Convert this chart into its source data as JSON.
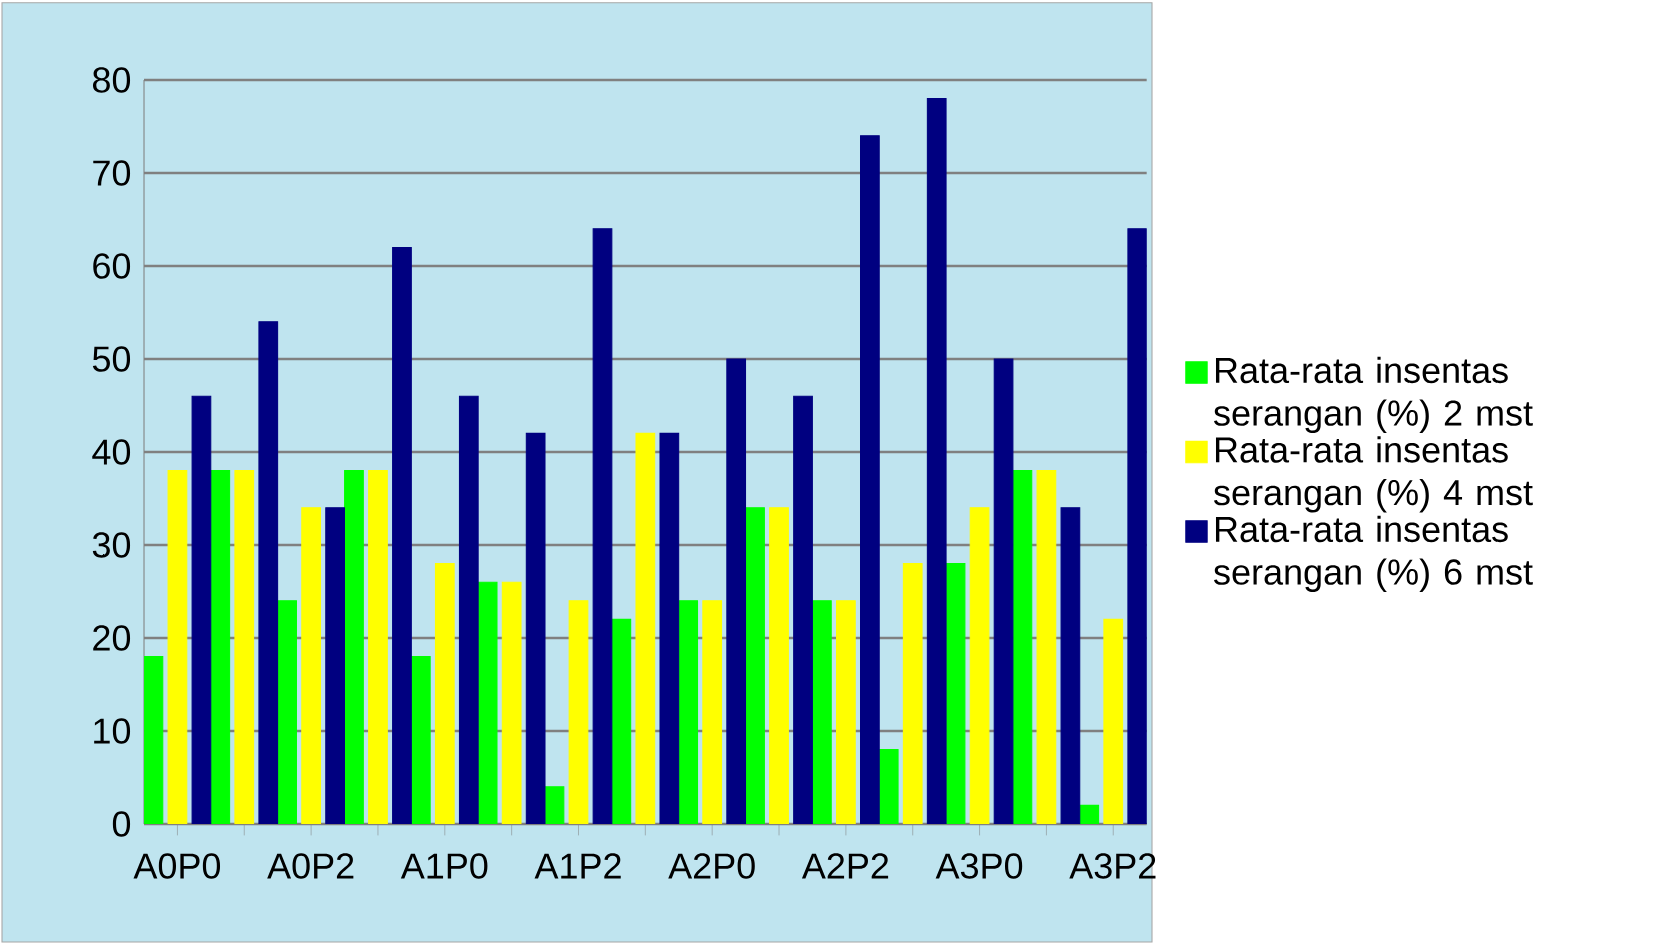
{
  "chart_data": {
    "type": "bar",
    "categories": [
      "A0P0",
      null,
      "A0P2",
      null,
      "A1P0",
      null,
      "A1P2",
      null,
      "A2P0",
      null,
      "A2P2",
      null,
      "A3P0",
      null,
      "A3P2"
    ],
    "series": [
      {
        "name": "Rata-rata insentas serangan (%) 2 mst",
        "color": "#00ff00",
        "values": [
          18,
          38,
          24,
          38,
          18,
          26,
          4,
          22,
          24,
          34,
          24,
          8,
          28,
          38,
          2
        ]
      },
      {
        "name": "Rata-rata insentas serangan (%) 4 mst",
        "color": "#ffff00",
        "values": [
          38,
          38,
          34,
          38,
          28,
          26,
          24,
          42,
          24,
          34,
          24,
          28,
          34,
          38,
          22
        ]
      },
      {
        "name": "Rata-rata insentas serangan (%) 6 mst",
        "color": "#000080",
        "values": [
          46,
          54,
          34,
          62,
          46,
          42,
          64,
          42,
          50,
          46,
          74,
          78,
          50,
          34,
          64
        ]
      }
    ],
    "ylim": [
      0,
      80
    ],
    "yticks": [
      0,
      10,
      20,
      30,
      40,
      50,
      60,
      70,
      80
    ],
    "grid": "y",
    "legend": "right"
  }
}
